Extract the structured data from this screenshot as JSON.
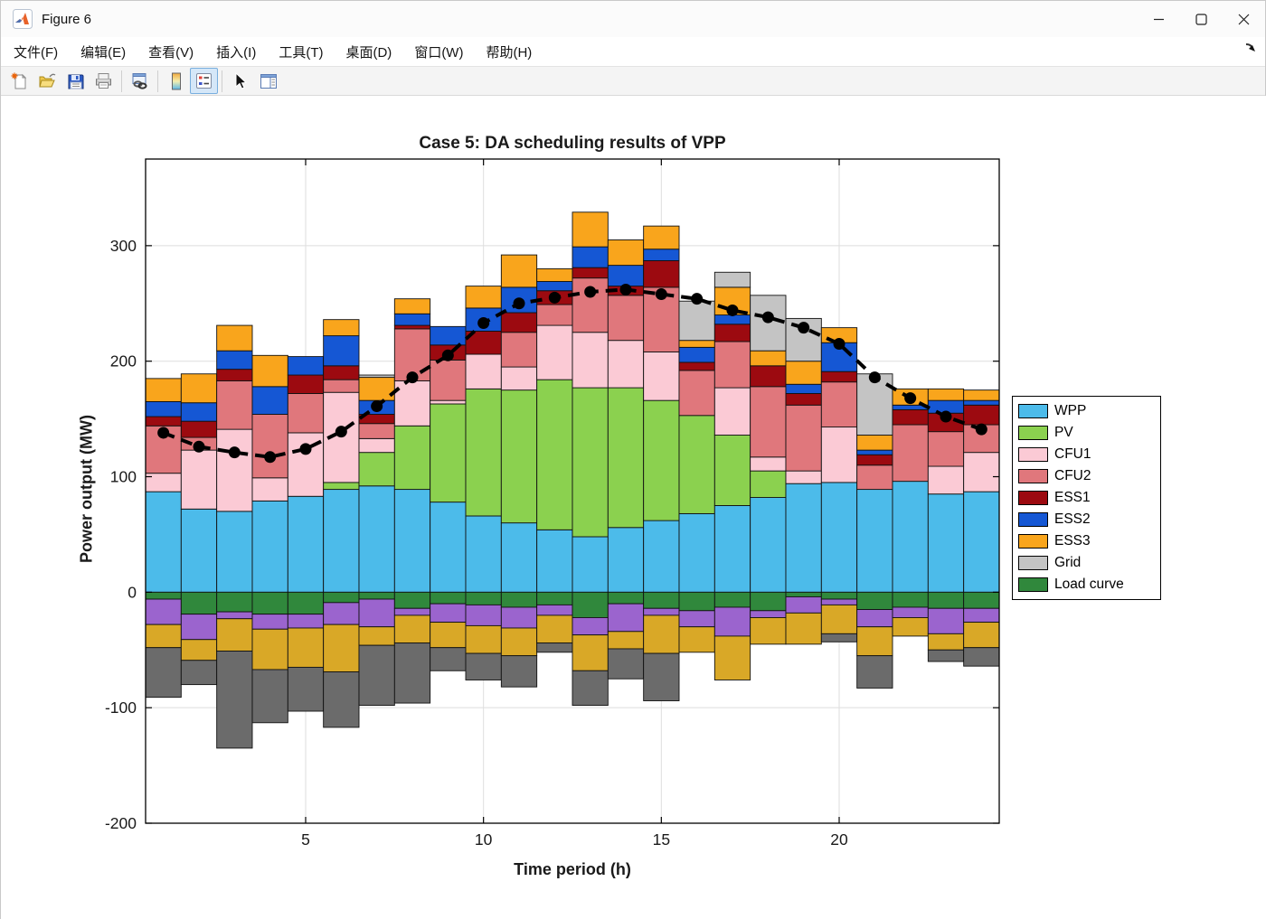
{
  "window": {
    "title": "Figure 6",
    "controls": {
      "minimize": "minimize",
      "maximize": "maximize",
      "close": "close"
    }
  },
  "menu": {
    "items": [
      "文件(F)",
      "编辑(E)",
      "查看(V)",
      "插入(I)",
      "工具(T)",
      "桌面(D)",
      "窗口(W)",
      "帮助(H)"
    ],
    "overflow_icon": "dock-figure-arrow"
  },
  "toolbar": {
    "buttons": [
      {
        "name": "new-figure-button",
        "icon": "new-document-icon"
      },
      {
        "name": "open-file-button",
        "icon": "open-folder-icon"
      },
      {
        "name": "save-button",
        "icon": "save-floppy-icon"
      },
      {
        "name": "print-button",
        "icon": "printer-icon"
      },
      {
        "name": "link-plot-button",
        "icon": "link-icon"
      },
      {
        "name": "insert-colorbar-button",
        "icon": "colorbar-icon"
      },
      {
        "name": "insert-legend-button",
        "icon": "legend-icon",
        "active": true
      },
      {
        "name": "data-cursor-button",
        "icon": "cursor-arrow-icon"
      },
      {
        "name": "property-editor-button",
        "icon": "property-panel-icon"
      }
    ]
  },
  "chart_data": {
    "type": "bar",
    "subtype": "stacked-with-line",
    "title": "Case 5: DA scheduling results of VPP",
    "xlabel": "Time period (h)",
    "ylabel": "Power output (MW)",
    "ylim": [
      -200,
      375
    ],
    "yticks": [
      -200,
      -100,
      0,
      100,
      200,
      300
    ],
    "xticks": [
      5,
      10,
      15,
      20
    ],
    "grid": true,
    "categories": [
      1,
      2,
      3,
      4,
      5,
      6,
      7,
      8,
      9,
      10,
      11,
      12,
      13,
      14,
      15,
      16,
      17,
      18,
      19,
      20,
      21,
      22,
      23,
      24
    ],
    "series": [
      {
        "name": "WPP",
        "color": "#4CBBEA",
        "values": [
          87,
          72,
          70,
          79,
          83,
          89,
          92,
          89,
          78,
          66,
          60,
          54,
          48,
          56,
          62,
          68,
          75,
          82,
          94,
          95,
          89,
          96,
          85,
          87
        ]
      },
      {
        "name": "PV",
        "color": "#8BD14F",
        "values": [
          0,
          0,
          0,
          0,
          0,
          6,
          29,
          55,
          85,
          110,
          115,
          130,
          129,
          121,
          104,
          85,
          61,
          23,
          0,
          0,
          0,
          0,
          0,
          0
        ]
      },
      {
        "name": "CFU1",
        "color": "#FBCAD5",
        "values": [
          16,
          51,
          71,
          20,
          55,
          78,
          12,
          39,
          3,
          30,
          20,
          47,
          48,
          41,
          42,
          0,
          41,
          12,
          11,
          48,
          0,
          0,
          24,
          34
        ]
      },
      {
        "name": "CFU2",
        "color": "#E0777C",
        "values": [
          41,
          11,
          42,
          55,
          34,
          11,
          13,
          45,
          35,
          0,
          30,
          18,
          47,
          39,
          56,
          39,
          40,
          61,
          57,
          39,
          21,
          49,
          30,
          24
        ]
      },
      {
        "name": "ESS1",
        "color": "#9C0A10",
        "values": [
          8,
          14,
          10,
          0,
          16,
          12,
          8,
          3,
          13,
          20,
          17,
          12,
          9,
          8,
          23,
          7,
          15,
          18,
          10,
          9,
          9,
          13,
          16,
          17
        ]
      },
      {
        "name": "ESS2",
        "color": "#1557D4",
        "values": [
          13,
          16,
          16,
          24,
          16,
          26,
          12,
          10,
          16,
          20,
          22,
          8,
          18,
          18,
          10,
          13,
          8,
          0,
          8,
          25,
          4,
          4,
          11,
          4
        ]
      },
      {
        "name": "ESS3",
        "color": "#F9A51C",
        "values": [
          20,
          25,
          22,
          27,
          0,
          14,
          20,
          13,
          0,
          19,
          28,
          11,
          30,
          22,
          20,
          6,
          24,
          13,
          20,
          13,
          13,
          14,
          10,
          9
        ]
      },
      {
        "name": "Grid",
        "color": "#C4C4C4",
        "values": [
          0,
          0,
          0,
          0,
          0,
          0,
          2,
          0,
          0,
          0,
          0,
          0,
          0,
          0,
          0,
          34,
          13,
          48,
          37,
          0,
          53,
          0,
          0,
          0
        ]
      },
      {
        "name": "Load curve",
        "color": "#30883C",
        "in_legend": true,
        "values": [
          -6,
          -19,
          -17,
          -19,
          -19,
          -9,
          -6,
          -14,
          -10,
          -11,
          -13,
          -11,
          -22,
          -10,
          -14,
          -16,
          -13,
          -16,
          -4,
          -6,
          -15,
          -13,
          -14,
          -14
        ]
      },
      {
        "name": "unlabeled-purple",
        "color": "#9B64CE",
        "in_legend": false,
        "values": [
          -22,
          -22,
          -6,
          -13,
          -12,
          -19,
          -24,
          -6,
          -16,
          -18,
          -18,
          -9,
          -15,
          -24,
          -6,
          -14,
          -25,
          -6,
          -14,
          -5,
          -15,
          -9,
          -22,
          -12
        ]
      },
      {
        "name": "unlabeled-dark-yellow",
        "color": "#D9A827",
        "in_legend": false,
        "values": [
          -20,
          -18,
          -28,
          -35,
          -34,
          -41,
          -16,
          -24,
          -22,
          -24,
          -24,
          -24,
          -31,
          -15,
          -33,
          -22,
          -38,
          -23,
          -27,
          -25,
          -25,
          -16,
          -14,
          -22
        ]
      },
      {
        "name": "unlabeled-dark-gray",
        "color": "#6B6B6B",
        "in_legend": false,
        "values": [
          -43,
          -21,
          -84,
          -46,
          -38,
          -48,
          -52,
          -52,
          -20,
          -23,
          -27,
          -8,
          -30,
          -26,
          -41,
          0,
          0,
          0,
          0,
          -7,
          -28,
          0,
          -10,
          -16
        ]
      }
    ],
    "line": {
      "name": "Load curve",
      "color": "#000000",
      "style": "dashed",
      "marker": "filled-circle",
      "values": [
        138,
        126,
        121,
        117,
        124,
        139,
        161,
        186,
        205,
        233,
        250,
        255,
        260,
        262,
        258,
        254,
        244,
        238,
        229,
        215,
        186,
        168,
        152,
        141
      ]
    },
    "legend": {
      "position": "right-outside",
      "entries": [
        {
          "label": "WPP",
          "color": "#4CBBEA"
        },
        {
          "label": "PV",
          "color": "#8BD14F"
        },
        {
          "label": "CFU1",
          "color": "#FBCAD5"
        },
        {
          "label": "CFU2",
          "color": "#E0777C"
        },
        {
          "label": "ESS1",
          "color": "#9C0A10"
        },
        {
          "label": "ESS2",
          "color": "#1557D4"
        },
        {
          "label": "ESS3",
          "color": "#F9A51C"
        },
        {
          "label": "Grid",
          "color": "#C4C4C4"
        },
        {
          "label": "Load curve",
          "color": "#30883C"
        }
      ]
    }
  }
}
